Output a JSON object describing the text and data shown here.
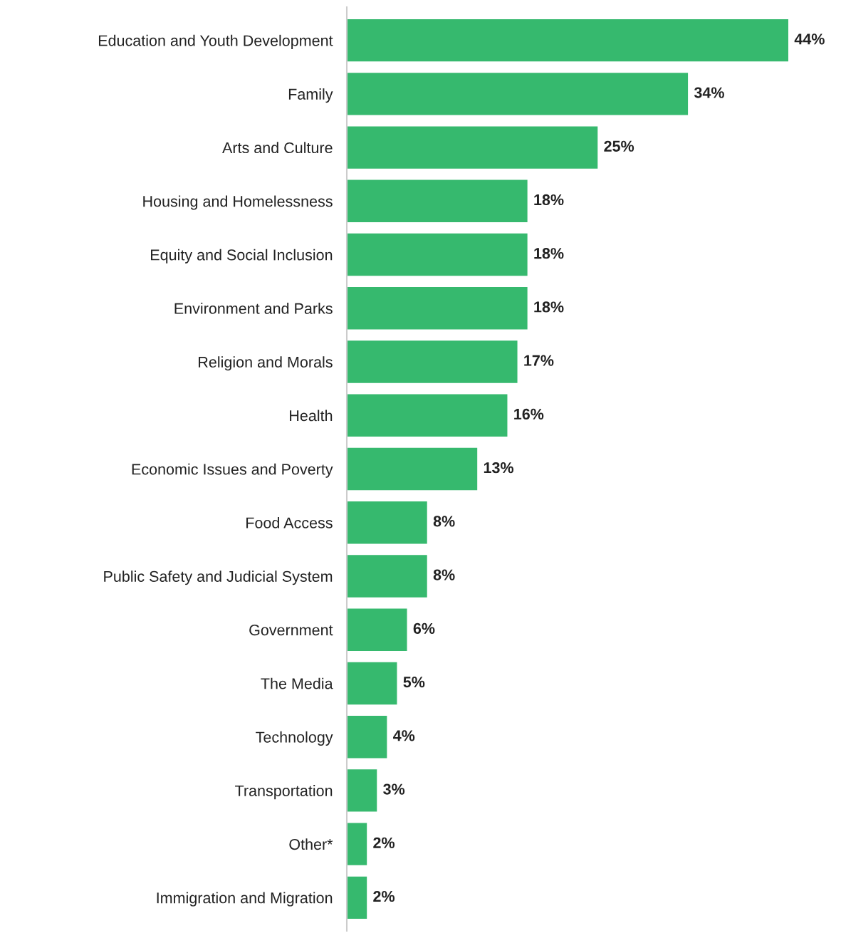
{
  "chart_data": {
    "type": "bar",
    "orientation": "horizontal",
    "categories": [
      "Education and Youth Development",
      "Family",
      "Arts and Culture",
      "Housing and Homelessness",
      "Equity and Social Inclusion",
      "Environment and Parks",
      "Religion and Morals",
      "Health",
      "Economic Issues and Poverty",
      "Food Access",
      "Public Safety and Judicial System",
      "Government",
      "The Media",
      "Technology",
      "Transportation",
      "Other*",
      "Immigration and Migration"
    ],
    "values": [
      44,
      34,
      25,
      18,
      18,
      18,
      17,
      16,
      13,
      8,
      8,
      6,
      5,
      4,
      3,
      2,
      2
    ],
    "value_labels": [
      "44%",
      "34%",
      "25%",
      "18%",
      "18%",
      "18%",
      "17%",
      "16%",
      "13%",
      "8%",
      "8%",
      "6%",
      "5%",
      "4%",
      "3%",
      "2%",
      "2%"
    ],
    "color": "#36b96e",
    "grid": false,
    "legend": false
  }
}
